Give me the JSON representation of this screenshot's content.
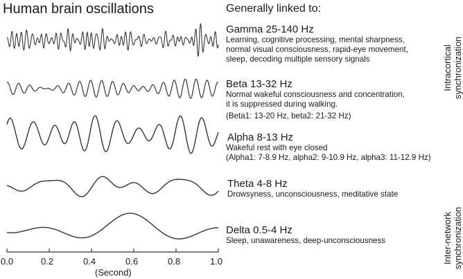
{
  "title": "Human brain oscillations",
  "linked_heading": "Generally linked to:",
  "bands": [
    {
      "name": "Gamma 25-140 Hz",
      "lines": [
        "Learning, cognitive processing, mental sharpness,",
        "normal visual consciousness, rapid-eye movement,",
        "sleep, decoding multiple sensory signals"
      ]
    },
    {
      "name": "Beta 13-32 Hz",
      "lines": [
        "Normal wakeful consciousness and concentration,",
        "it is suppressed during walking.",
        "(Beta1: 13-20 Hz, beta2: 21-32 Hz)"
      ]
    },
    {
      "name": "Alpha 8-13 Hz",
      "lines": [
        "Wakeful rest with eye closed",
        "(Alpha1: 7-8.9 Hz, alpha2: 9-10.9 Hz, alpha3: 11-12.9 Hz)"
      ]
    },
    {
      "name": "Theta 4-8 Hz",
      "lines": [
        "Drowsyness, unconsciousness, meditative state"
      ]
    },
    {
      "name": "Delta 0.5-4 Hz",
      "lines": [
        "Sleep, unawareness, deep-unconsciousness"
      ]
    }
  ],
  "side_labels": {
    "intracortical": [
      "Intracortical",
      "synchronization"
    ],
    "internetwork": [
      "Inter-network",
      "synchronization"
    ]
  },
  "axis": {
    "ticks": [
      "0.0",
      "0.2",
      "0.4",
      "0.6",
      "0.8",
      "1.0"
    ],
    "label": "(Second)",
    "range": [
      0,
      1
    ]
  },
  "colors": {
    "wave": "#333333",
    "text": "#1a1a1a"
  }
}
